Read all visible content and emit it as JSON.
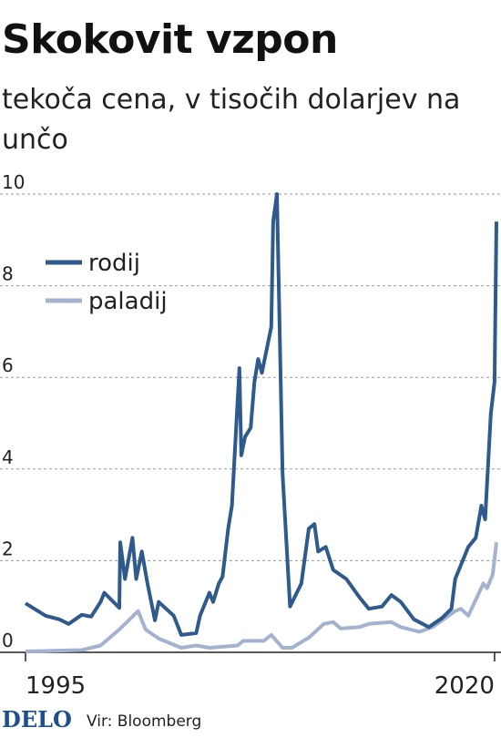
{
  "chart_data": {
    "type": "line",
    "title": "Skokovit vzpon",
    "subtitle": "tekoča cena, v tisočih dolarjev na unčo",
    "logo": "DELO",
    "source": "Vir: Bloomberg",
    "xlim": [
      1995,
      2020.1
    ],
    "xticks": [
      1995,
      2020
    ],
    "ylim": [
      0,
      10
    ],
    "yticks": [
      0,
      2,
      4,
      6,
      8,
      10
    ],
    "grid": true,
    "legend": "upper left",
    "series": [
      {
        "name": "rodij",
        "color": "#2e5a8c",
        "x": [
          1995.0,
          1996.07,
          1996.8,
          1997.3,
          1998.0,
          1998.5,
          1999.0,
          1999.2,
          2000.0,
          2000.05,
          2000.3,
          2000.7,
          2000.9,
          2001.2,
          2001.5,
          2001.9,
          2002.1,
          2002.9,
          2003.3,
          2004.1,
          2004.3,
          2004.8,
          2005.0,
          2005.3,
          2005.5,
          2005.8,
          2006.0,
          2006.4,
          2006.5,
          2006.7,
          2007.0,
          2007.2,
          2007.4,
          2007.6,
          2008.1,
          2008.2,
          2008.4,
          2008.7,
          2009.1,
          2009.7,
          2010.1,
          2010.4,
          2010.6,
          2011.0,
          2011.4,
          2012.1,
          2012.8,
          2013.3,
          2014.0,
          2014.5,
          2015.0,
          2015.7,
          2016.5,
          2017.2,
          2017.7,
          2017.9,
          2018.6,
          2019.0,
          2019.3,
          2019.5,
          2019.8,
          2020.0,
          2020.1
        ],
        "values": [
          1.07,
          0.8,
          0.72,
          0.62,
          0.82,
          0.78,
          1.1,
          1.3,
          0.97,
          2.4,
          1.6,
          2.5,
          1.6,
          2.2,
          1.5,
          0.7,
          1.1,
          0.8,
          0.38,
          0.42,
          0.8,
          1.3,
          1.1,
          1.5,
          1.65,
          2.7,
          3.2,
          6.2,
          4.3,
          4.7,
          4.9,
          5.9,
          6.4,
          6.1,
          7.1,
          9.4,
          10.0,
          3.9,
          1.0,
          1.5,
          2.7,
          2.8,
          2.2,
          2.3,
          1.8,
          1.6,
          1.2,
          0.95,
          1.0,
          1.25,
          1.1,
          0.72,
          0.55,
          0.75,
          0.95,
          1.6,
          2.3,
          2.5,
          3.2,
          2.9,
          5.2,
          5.9,
          9.4
        ]
      },
      {
        "name": "paladij",
        "color": "#a3b3cf",
        "x": [
          1995.0,
          1998.0,
          1999.0,
          2000.0,
          2001.0,
          2001.4,
          2002.1,
          2003.3,
          2004.1,
          2004.8,
          2006.3,
          2006.6,
          2007.7,
          2008.1,
          2008.7,
          2009.2,
          2010.1,
          2010.9,
          2011.4,
          2011.8,
          2012.8,
          2013.3,
          2014.5,
          2015.0,
          2016.0,
          2016.7,
          2017.9,
          2018.2,
          2018.6,
          2019.4,
          2019.6,
          2019.9,
          2020.1
        ],
        "values": [
          0.02,
          0.05,
          0.15,
          0.5,
          0.9,
          0.5,
          0.3,
          0.1,
          0.15,
          0.1,
          0.15,
          0.25,
          0.25,
          0.38,
          0.1,
          0.1,
          0.32,
          0.62,
          0.66,
          0.52,
          0.55,
          0.62,
          0.66,
          0.55,
          0.45,
          0.55,
          0.9,
          0.95,
          0.8,
          1.5,
          1.4,
          1.7,
          2.4
        ]
      }
    ]
  }
}
